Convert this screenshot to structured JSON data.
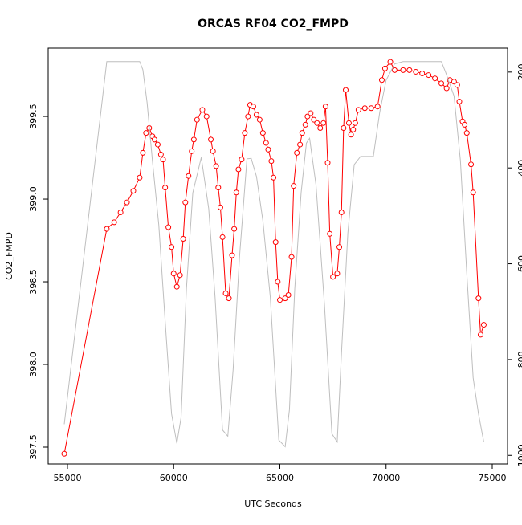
{
  "chart_data": {
    "type": "line",
    "title": "ORCAS RF04 CO2_FMPD",
    "xlabel": "UTC Seconds",
    "ylabel": "CO2_FMPD",
    "xlim": [
      54093,
      75718
    ],
    "xticks": [
      55000,
      60000,
      65000,
      70000,
      75000
    ],
    "ylim": [
      397.398,
      399.913
    ],
    "yticks": [
      397.5,
      {
        "value": 398,
        "label": "398.0"
      },
      398.5,
      {
        "value": 399,
        "label": "399.0"
      },
      399.5
    ],
    "y2lim": [
      1018,
      150
    ],
    "y2ticks": [
      200,
      400,
      600,
      800,
      1000
    ],
    "series": [
      {
        "color": "#ff0000",
        "markers": true,
        "x": [
          54850,
          56850,
          57200,
          57500,
          57800,
          58100,
          58400,
          58550,
          58700,
          58850,
          59000,
          59100,
          59250,
          59400,
          59500,
          59600,
          59750,
          59900,
          60000,
          60150,
          60300,
          60450,
          60550,
          60700,
          60850,
          60950,
          61100,
          61350,
          61550,
          61750,
          61850,
          62000,
          62100,
          62200,
          62300,
          62450,
          62600,
          62750,
          62850,
          62950,
          63050,
          63200,
          63350,
          63500,
          63600,
          63750,
          63900,
          64050,
          64200,
          64350,
          64450,
          64600,
          64700,
          64800,
          64900,
          65000,
          65250,
          65400,
          65550,
          65650,
          65800,
          65950,
          66050,
          66200,
          66300,
          66450,
          66600,
          66750,
          66900,
          67050,
          67150,
          67250,
          67350,
          67500,
          67700,
          67800,
          67900,
          68000,
          68100,
          68250,
          68350,
          68450,
          68550,
          68700,
          69000,
          69300,
          69600,
          69800,
          69950,
          70200,
          70400,
          70800,
          71100,
          71400,
          71700,
          72000,
          72300,
          72600,
          72850,
          73000,
          73200,
          73350,
          73450,
          73600,
          73700,
          73800,
          74000,
          74100,
          74350,
          74450,
          74600
        ],
        "values": [
          397.46,
          398.82,
          398.86,
          398.92,
          398.98,
          399.05,
          399.13,
          399.28,
          399.4,
          399.43,
          399.38,
          399.36,
          399.33,
          399.27,
          399.24,
          399.07,
          398.83,
          398.71,
          398.55,
          398.47,
          398.54,
          398.76,
          398.98,
          399.14,
          399.29,
          399.36,
          399.48,
          399.54,
          399.5,
          399.36,
          399.29,
          399.2,
          399.07,
          398.95,
          398.77,
          398.43,
          398.4,
          398.66,
          398.82,
          399.04,
          399.18,
          399.24,
          399.4,
          399.5,
          399.57,
          399.56,
          399.51,
          399.48,
          399.4,
          399.34,
          399.3,
          399.23,
          399.13,
          398.74,
          398.5,
          398.39,
          398.4,
          398.42,
          398.65,
          399.08,
          399.28,
          399.33,
          399.4,
          399.45,
          399.5,
          399.52,
          399.48,
          399.46,
          399.43,
          399.46,
          399.56,
          399.22,
          398.79,
          398.53,
          398.55,
          398.71,
          398.92,
          399.43,
          399.66,
          399.46,
          399.39,
          399.42,
          399.46,
          399.54,
          399.55,
          399.55,
          399.56,
          399.72,
          399.79,
          399.83,
          399.78,
          399.78,
          399.78,
          399.77,
          399.76,
          399.75,
          399.73,
          399.7,
          399.67,
          399.72,
          399.71,
          399.69,
          399.59,
          399.47,
          399.45,
          399.4,
          399.21,
          399.04,
          398.4,
          398.18,
          398.24
        ]
      },
      {
        "color": "#bebebe",
        "axis": "y2",
        "markers": false,
        "x": [
          54850,
          56850,
          58400,
          58550,
          58750,
          59000,
          59300,
          59600,
          59900,
          60150,
          60350,
          60600,
          60900,
          61300,
          61650,
          61950,
          62300,
          62550,
          62800,
          63100,
          63450,
          63650,
          63900,
          64200,
          64550,
          64950,
          65250,
          65450,
          65700,
          66000,
          66250,
          66400,
          66700,
          67100,
          67450,
          67700,
          67900,
          68200,
          68500,
          68800,
          69400,
          69700,
          70000,
          70400,
          70800,
          72600,
          72800,
          73200,
          73500,
          73800,
          74100,
          74350,
          74600
        ],
        "values": [
          935,
          178,
          178,
          195,
          264,
          385,
          519,
          720,
          913,
          975,
          921,
          653,
          452,
          378,
          485,
          670,
          947,
          960,
          821,
          586,
          381,
          380,
          418,
          510,
          670,
          968,
          982,
          905,
          653,
          452,
          348,
          338,
          435,
          686,
          955,
          972,
          787,
          536,
          393,
          376,
          376,
          284,
          217,
          183,
          178,
          178,
          200,
          250,
          385,
          620,
          838,
          913,
          972
        ]
      }
    ]
  }
}
